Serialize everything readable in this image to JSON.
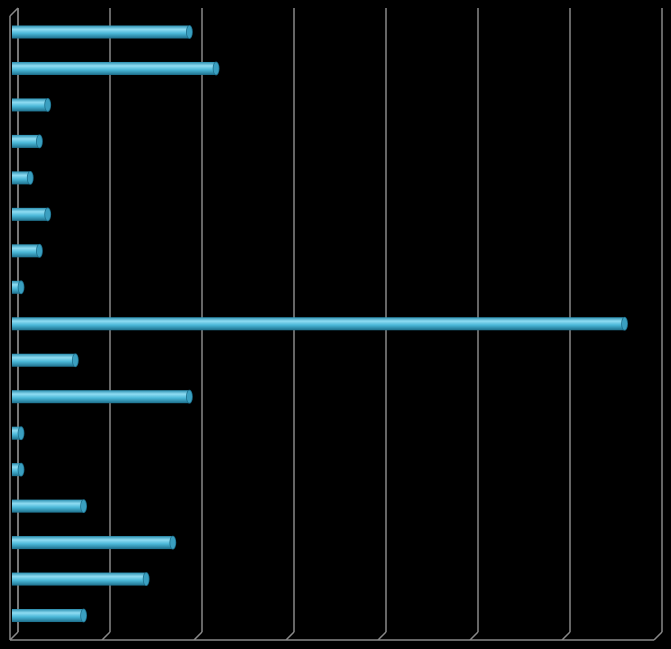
{
  "chart_data": {
    "type": "hbar",
    "categories": [
      null,
      null,
      null,
      null,
      null,
      null,
      null,
      null,
      null,
      null,
      null,
      null,
      null,
      null,
      null,
      null,
      null
    ],
    "values": [
      1.95,
      2.24,
      0.41,
      0.32,
      0.22,
      0.41,
      0.32,
      0.12,
      6.68,
      0.71,
      1.95,
      0.12,
      0.12,
      0.8,
      1.77,
      1.48,
      0.8
    ],
    "color": "#4bb8d8",
    "xlim": [
      0,
      7
    ],
    "xticks": [
      0,
      1,
      2,
      3,
      4,
      5,
      6,
      7
    ],
    "grid": true
  }
}
